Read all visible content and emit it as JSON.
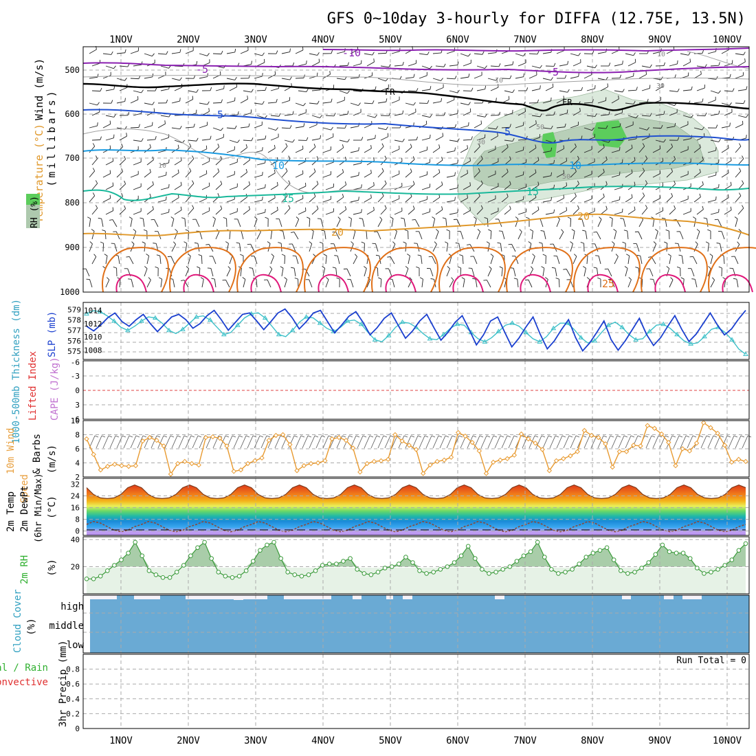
{
  "title": "GFS 0~10day 3-hourly for DIFFA (12.75E, 13.5N)",
  "date_labels": [
    "1NOV",
    "2NOV",
    "3NOV",
    "4NOV",
    "5NOV",
    "6NOV",
    "7NOV",
    "8NOV",
    "9NOV",
    "10NOV"
  ],
  "colors": {
    "grid": "#aaaaaa",
    "fr": "#000000",
    "iso_m10": "#8a1fb0",
    "iso_m5": "#8a1fb0",
    "iso_5": "#1f4fd0",
    "iso_10": "#1a9ae0",
    "iso_15": "#18b89a",
    "iso_20": "#e0982a",
    "iso_25": "#e07018",
    "iso_30": "#e0187a",
    "rh_fill": "#d8ead8",
    "rh_mid": "#aec9ae",
    "rh_high": "#5cc85c",
    "slp": "#1a3fcf",
    "thickness": "#3cc0c8",
    "lifted_zero": "#e04040",
    "wind_speed": "#e89a30",
    "temp_line": "#7a3a1a",
    "dewpt_line": "#8a4a3a",
    "rh2m": "#3a9a3a",
    "rh2m_fill": "#e6f2e6",
    "cloud": "#6aaad4",
    "cloud_gap": "#f5f2f8",
    "label_purple": "#c070d0",
    "label_green": "#30b030",
    "label_red": "#e03030",
    "label_orange": "#e8a040",
    "label_cyan": "#30a0c0"
  },
  "panel1": {
    "y_ticks": [
      "500",
      "600",
      "700",
      "800",
      "900",
      "1000"
    ],
    "ylabel_wind": "Wind (m/s)",
    "ylabel_temp": "Temperature (°C)",
    "ylabel_rh": "RH (%)",
    "ylabel_mb": "(millibars)",
    "isotherm_labels": {
      "m10": "-10",
      "m5a": "-5",
      "m5b": "-5",
      "fra": "FR",
      "frb": "FR",
      "p5a": "5",
      "p5b": "5",
      "p10a": "10",
      "p10b": "10",
      "p15a": "15",
      "p15b": "15",
      "p20a": "20",
      "p20b": "20",
      "p25": "25",
      "rh10a": "10",
      "rh10b": "10",
      "rh30a": "30",
      "rh50a": "50",
      "rh50b": "50",
      "rh30b": "30",
      "rh10c": "10"
    }
  },
  "panel2": {
    "ylabel_thk": "1000-500mb Thickness (dm)",
    "ylabel_slp": "SLP (mb)",
    "thk_ticks": [
      "579",
      "578",
      "577",
      "576",
      "575"
    ],
    "slp_ticks": [
      "1014",
      "1012",
      "1010",
      "1008"
    ]
  },
  "panel3": {
    "ylabel_li": "Lifted Index",
    "ylabel_cape": "CAPE (J/kg)",
    "ticks": [
      "-6",
      "-3",
      "0",
      "3",
      "6"
    ]
  },
  "panel4": {
    "ylabel_a": "10m Wind",
    "ylabel_b": "Speed",
    "ylabel_c": "& Barbs",
    "ylabel_unit": "(m/s)",
    "ticks": [
      "10",
      "8",
      "6",
      "4",
      "2"
    ]
  },
  "panel5": {
    "ylabel_a": "2m Temp",
    "ylabel_b": "2m DewPt",
    "ylabel_c": "(6hr Min/Max)",
    "ylabel_unit": "(°C)",
    "ticks": [
      "32",
      "24",
      "16",
      "8",
      "0"
    ]
  },
  "panel6": {
    "ylabel": "2m RH",
    "ylabel_unit": "(%)",
    "ticks": [
      "40",
      "20"
    ]
  },
  "panel7": {
    "ylabel": "Cloud Cover",
    "ylabel_unit": "(%)",
    "levels": [
      "high",
      "middle",
      "low"
    ]
  },
  "panel8": {
    "ylabel_a": "Total / Rain",
    "ylabel_b": "Convective",
    "ylabel_c": "3hr Precip (mm)",
    "ticks": [
      "0.8",
      "0.6",
      "0.4",
      "0.2",
      "0"
    ],
    "run_total": "Run Total = 0"
  },
  "chart_data": {
    "type": "line",
    "time_step_hours": 3,
    "series": [
      {
        "name": "SLP (mb)",
        "values": [
          1011.6,
          1010.9,
          1011.8,
          1012.9,
          1013.6,
          1012.3,
          1011.6,
          1012.6,
          1013.4,
          1012.0,
          1010.8,
          1011.9,
          1013.0,
          1013.4,
          1012.6,
          1011.3,
          1012.0,
          1013.2,
          1014.0,
          1012.6,
          1011.0,
          1012.2,
          1013.4,
          1013.6,
          1012.4,
          1011.1,
          1012.3,
          1013.6,
          1014.2,
          1012.9,
          1011.2,
          1012.3,
          1013.6,
          1014.0,
          1012.3,
          1010.6,
          1011.8,
          1013.1,
          1013.8,
          1012.2,
          1010.3,
          1011.4,
          1012.8,
          1013.6,
          1011.7,
          1009.8,
          1010.9,
          1012.4,
          1013.4,
          1011.4,
          1009.5,
          1010.7,
          1012.2,
          1013.2,
          1011.1,
          1008.8,
          1010.3,
          1012.4,
          1013.0,
          1010.7,
          1008.5,
          1009.8,
          1011.5,
          1013.0,
          1010.4,
          1008.2,
          1009.4,
          1011.1,
          1012.6,
          1009.9,
          1007.9,
          1009.1,
          1010.7,
          1012.4,
          1009.6,
          1008.0,
          1009.4,
          1011.1,
          1012.8,
          1010.4,
          1008.7,
          1009.9,
          1011.6,
          1013.2,
          1011.1,
          1009.3,
          1010.4,
          1012.0,
          1013.6,
          1011.8,
          1010.3,
          1011.2,
          1012.7,
          1014.0
        ]
      },
      {
        "name": "1000-500mb Thickness (dm)",
        "values": [
          578.6,
          578.9,
          578.8,
          578.4,
          577.9,
          577.3,
          577.0,
          577.4,
          577.9,
          578.3,
          578.2,
          577.7,
          577.0,
          576.7,
          577.1,
          577.7,
          578.3,
          578.4,
          578.0,
          577.3,
          576.6,
          576.8,
          577.5,
          578.2,
          578.6,
          578.7,
          578.2,
          577.4,
          576.6,
          576.4,
          577.0,
          577.8,
          578.3,
          578.2,
          577.7,
          577.2,
          576.9,
          577.3,
          577.9,
          578.0,
          577.6,
          576.8,
          576.1,
          575.9,
          576.5,
          577.3,
          577.8,
          577.7,
          577.3,
          576.7,
          576.2,
          576.1,
          576.6,
          577.2,
          577.6,
          577.5,
          576.8,
          576.2,
          575.9,
          576.3,
          576.9,
          577.5,
          577.7,
          577.4,
          576.8,
          576.2,
          575.9,
          576.4,
          577.2,
          577.7,
          577.7,
          577.1,
          576.3,
          575.8,
          576.0,
          576.8,
          577.5,
          577.8,
          577.3,
          576.6,
          576.1,
          576.2,
          576.9,
          577.5,
          577.6,
          577.2,
          576.6,
          576.0,
          575.7,
          575.8,
          576.4,
          577.1,
          577.3,
          576.8,
          576.1,
          575.2,
          574.7
        ]
      },
      {
        "name": "10m Wind Speed (m/s)",
        "values": [
          7.4,
          5.2,
          3.0,
          3.5,
          3.8,
          3.6,
          3.5,
          3.6,
          7.1,
          7.6,
          7.2,
          6.4,
          2.4,
          3.9,
          4.2,
          3.9,
          3.7,
          7.6,
          7.7,
          7.5,
          6.4,
          2.8,
          3.0,
          3.9,
          4.3,
          4.7,
          7.2,
          7.9,
          8.0,
          6.6,
          2.9,
          3.6,
          3.9,
          4.0,
          4.3,
          7.4,
          7.6,
          7.2,
          6.1,
          2.7,
          3.9,
          4.2,
          4.3,
          4.5,
          8.0,
          7.1,
          6.5,
          5.9,
          2.5,
          3.7,
          4.2,
          4.4,
          4.8,
          8.3,
          7.8,
          6.9,
          5.7,
          2.5,
          4.1,
          4.4,
          4.6,
          5.1,
          8.1,
          7.4,
          6.8,
          5.9,
          2.9,
          4.3,
          4.6,
          5.0,
          5.6,
          8.6,
          7.9,
          7.6,
          6.7,
          3.4,
          5.6,
          5.6,
          6.5,
          6.4,
          9.3,
          8.9,
          8.1,
          6.9,
          3.6,
          6.0,
          5.7,
          6.8,
          9.7,
          9.0,
          8.2,
          6.5,
          4.1,
          4.5,
          4.2
        ]
      },
      {
        "name": "2m RH (%)",
        "values": [
          11,
          11,
          13,
          17,
          21,
          25,
          30,
          38,
          28,
          17,
          14,
          12,
          12,
          16,
          21,
          28,
          34,
          38,
          26,
          16,
          13,
          12,
          13,
          17,
          24,
          32,
          36,
          38,
          26,
          16,
          14,
          13,
          14,
          17,
          21,
          22,
          22,
          24,
          26,
          18,
          15,
          14,
          16,
          19,
          20,
          22,
          27,
          23,
          17,
          15,
          16,
          18,
          20,
          23,
          28,
          35,
          26,
          18,
          15,
          16,
          18,
          20,
          24,
          28,
          31,
          38,
          27,
          18,
          15,
          16,
          18,
          22,
          27,
          30,
          32,
          34,
          25,
          17,
          15,
          16,
          19,
          23,
          29,
          36,
          31,
          30,
          30,
          26,
          19,
          15,
          16,
          18,
          21,
          25,
          32,
          37
        ]
      }
    ],
    "panel1_y_axis": "pressure (millibars)",
    "panel1_y_range": [
      1000,
      450
    ],
    "cape_lifted_y_range": [
      -6,
      6
    ],
    "wind10m_y_range": [
      2,
      10
    ],
    "temp2m_y_range": [
      -3,
      36
    ],
    "rh2m_y_range": [
      0,
      42
    ],
    "precip_y_range": [
      0,
      1.0
    ],
    "precip_run_total": 0,
    "cloud_cover_levels": [
      "high",
      "middle",
      "low"
    ],
    "x_start": "31OCT 18Z",
    "x_labels": [
      "1NOV",
      "2NOV",
      "3NOV",
      "4NOV",
      "5NOV",
      "6NOV",
      "7NOV",
      "8NOV",
      "9NOV",
      "10NOV"
    ]
  }
}
